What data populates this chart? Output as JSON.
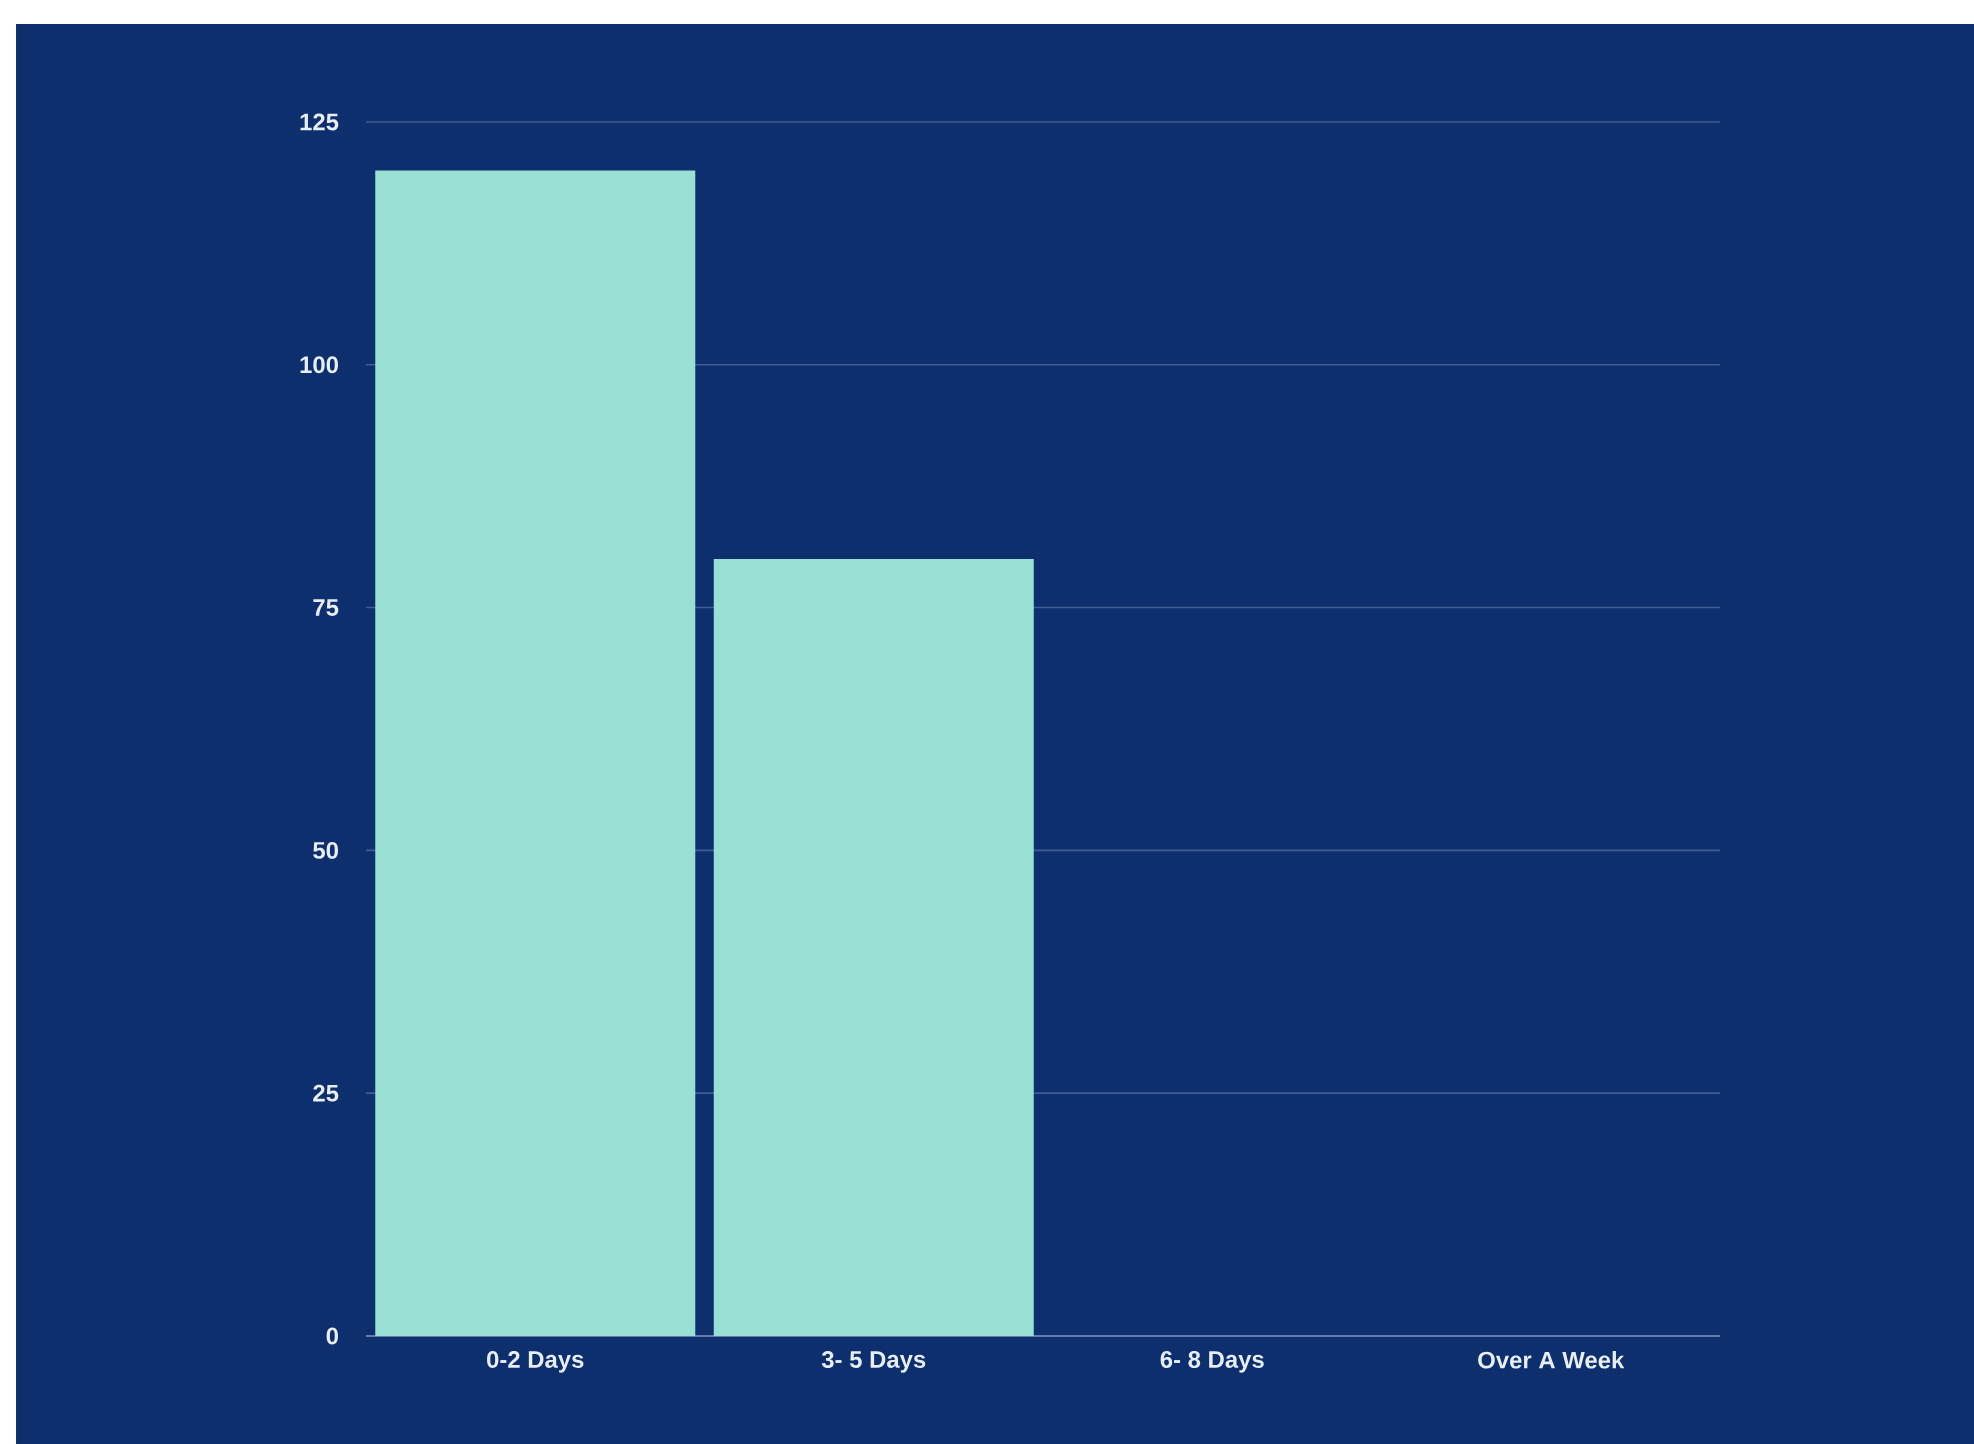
{
  "chart_data": {
    "type": "bar",
    "categories": [
      "0-2 Days",
      "3- 5 Days",
      "6- 8 Days",
      "Over A Week"
    ],
    "values": [
      120,
      80,
      0,
      0
    ],
    "color": "#98e0d4",
    "ylim": [
      0,
      125
    ],
    "yticks": [
      0,
      25,
      50,
      75,
      100,
      125
    ],
    "grid": "y"
  }
}
